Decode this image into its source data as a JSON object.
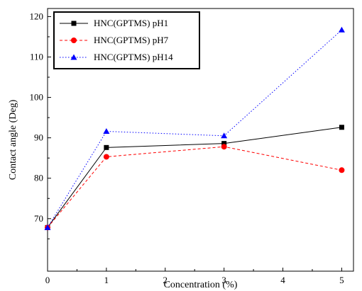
{
  "chart_data": {
    "type": "line",
    "xlabel": "Concentration (%)",
    "ylabel": "Contact angle (Deg)",
    "xlim": [
      0,
      5.2
    ],
    "ylim": [
      57,
      122
    ],
    "xticks": [
      0,
      1,
      2,
      3,
      4,
      5
    ],
    "yticks": [
      70,
      80,
      90,
      100,
      110,
      120
    ],
    "grid": false,
    "legend_position": "top-left",
    "series": [
      {
        "name": "HNC(GPTMS) pH1",
        "color": "#000000",
        "line": "solid",
        "marker": "square",
        "x": [
          0,
          1,
          3,
          5
        ],
        "y": [
          67.8,
          87.6,
          88.6,
          92.6
        ]
      },
      {
        "name": "HNC(GPTMS) pH7",
        "color": "#ff0000",
        "line": "dashed",
        "marker": "circle",
        "x": [
          0,
          1,
          3,
          5
        ],
        "y": [
          67.8,
          85.3,
          87.8,
          82.0
        ]
      },
      {
        "name": "HNC(GPTMS) pH14",
        "color": "#0000ff",
        "line": "dotted",
        "marker": "triangle",
        "x": [
          0,
          1,
          3,
          5
        ],
        "y": [
          67.8,
          91.6,
          90.5,
          116.7
        ]
      }
    ]
  }
}
